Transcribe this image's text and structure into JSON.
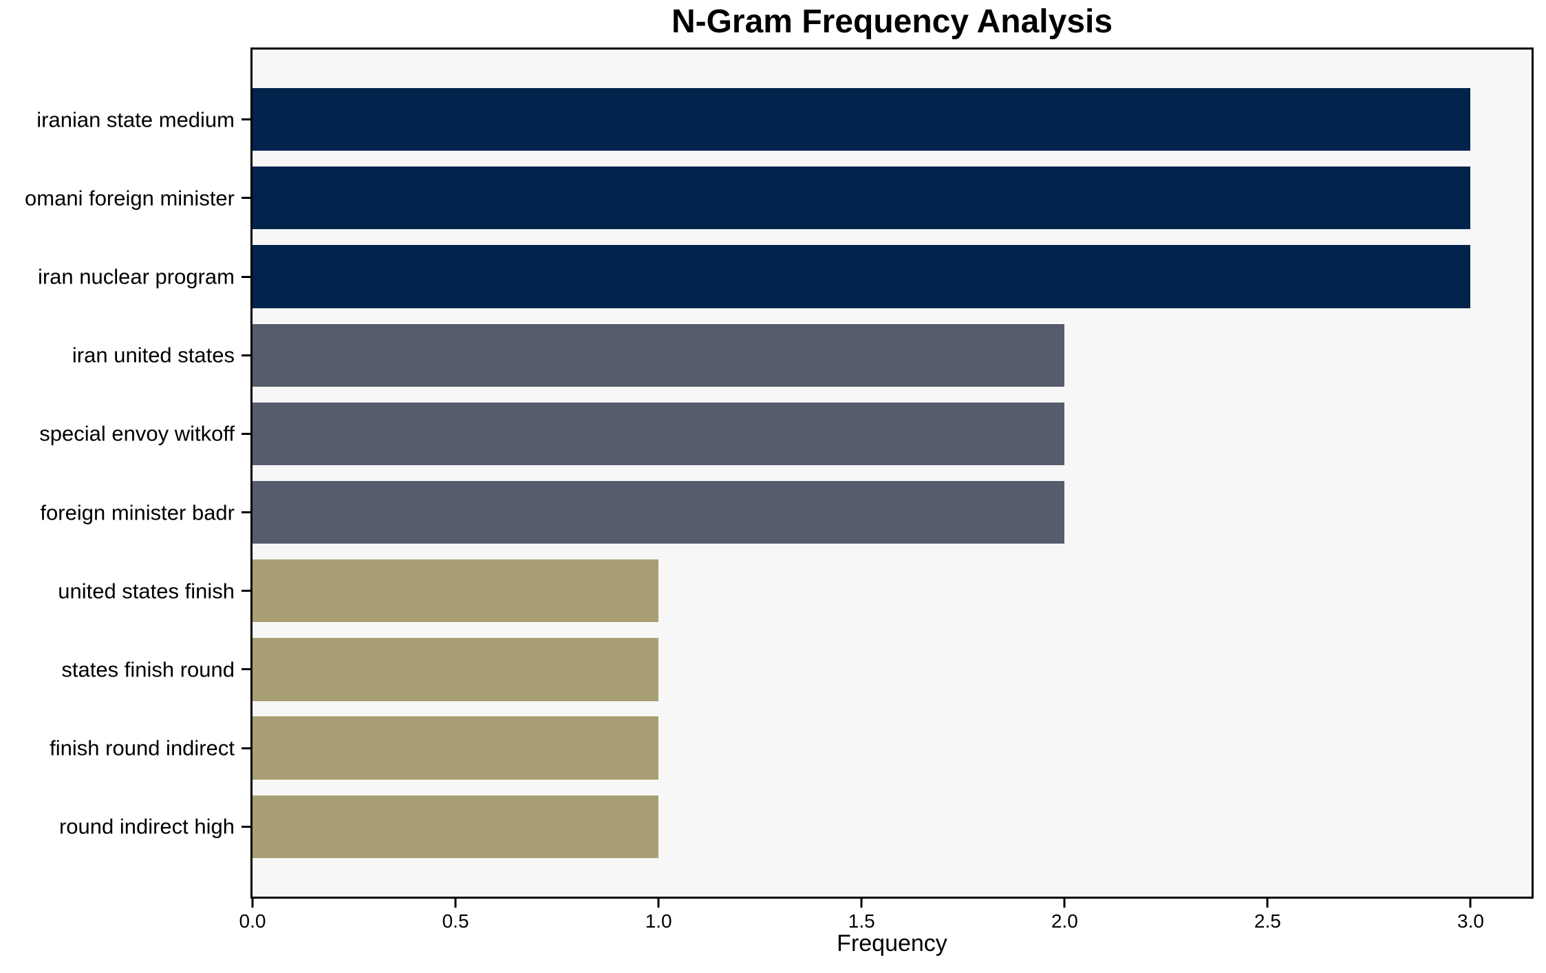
{
  "chart_data": {
    "type": "bar",
    "orientation": "horizontal",
    "title": "N-Gram Frequency Analysis",
    "xlabel": "Frequency",
    "ylabel": "",
    "categories": [
      "iranian state medium",
      "omani foreign minister",
      "iran nuclear program",
      "iran united states",
      "special envoy witkoff",
      "foreign minister badr",
      "united states finish",
      "states finish round",
      "finish round indirect",
      "round indirect high"
    ],
    "values": [
      3,
      3,
      3,
      2,
      2,
      2,
      1,
      1,
      1,
      1
    ],
    "bar_colors": [
      "#02234c",
      "#02234c",
      "#02234c",
      "#565c6b",
      "#565c6b",
      "#565c6b",
      "#a89e73",
      "#a89e73",
      "#a89e73",
      "#a89e73"
    ],
    "x_ticks": [
      0,
      0.5,
      1.0,
      1.5,
      2.0,
      2.5,
      3.0
    ],
    "x_tick_labels": [
      "0.0",
      "0.5",
      "1.0",
      "1.5",
      "2.0",
      "2.5",
      "3.0"
    ],
    "xlim": [
      0,
      3.15
    ],
    "bar_height_frac": 0.8,
    "grid": false,
    "legend": "none",
    "plot_bg": "#f7f7f7",
    "fig_bg": "#ffffff",
    "spine_color": "#000000",
    "text_color": "#000000"
  }
}
